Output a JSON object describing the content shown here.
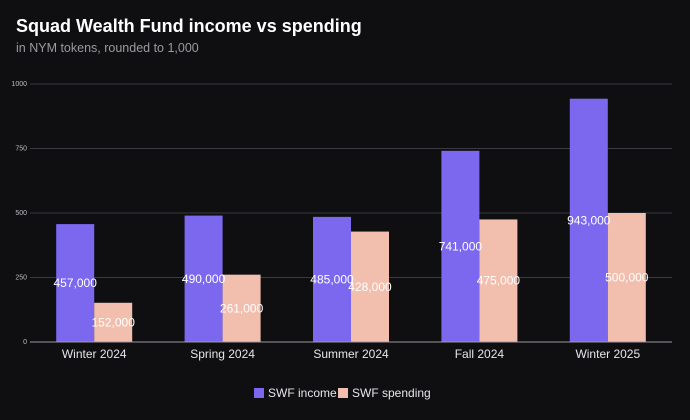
{
  "colors": {
    "background": "#0f0f11",
    "income": "#7b68ee",
    "spending": "#f2bfae",
    "grid": "#3a3a40",
    "axis": "#9a9aa0"
  },
  "chart_data": {
    "type": "bar",
    "title": "Squad Wealth Fund income vs spending",
    "subtitle": "in NYM tokens, rounded to 1,000",
    "xlabel": "",
    "ylabel": "",
    "ylim": [
      0,
      1000
    ],
    "yticks": [
      0,
      250,
      500,
      750,
      1000
    ],
    "ytick_labels": [
      "0",
      "250",
      "500",
      "750",
      "1000"
    ],
    "grid": true,
    "legend_position": "bottom-center",
    "categories": [
      "Winter 2024",
      "Spring 2024",
      "Summer 2024",
      "Fall 2024",
      "Winter 2025"
    ],
    "series": [
      {
        "name": "SWF income",
        "color": "#7b68ee",
        "values": [
          457,
          490,
          485,
          741,
          943
        ],
        "labels": [
          "457,000",
          "490,000",
          "485,000",
          "741,000",
          "943,000"
        ]
      },
      {
        "name": "SWF spending",
        "color": "#f2bfae",
        "values": [
          152,
          261,
          428,
          475,
          500
        ],
        "labels": [
          "152,000",
          "261,000",
          "428,000",
          "475,000",
          "500,000"
        ]
      }
    ]
  }
}
